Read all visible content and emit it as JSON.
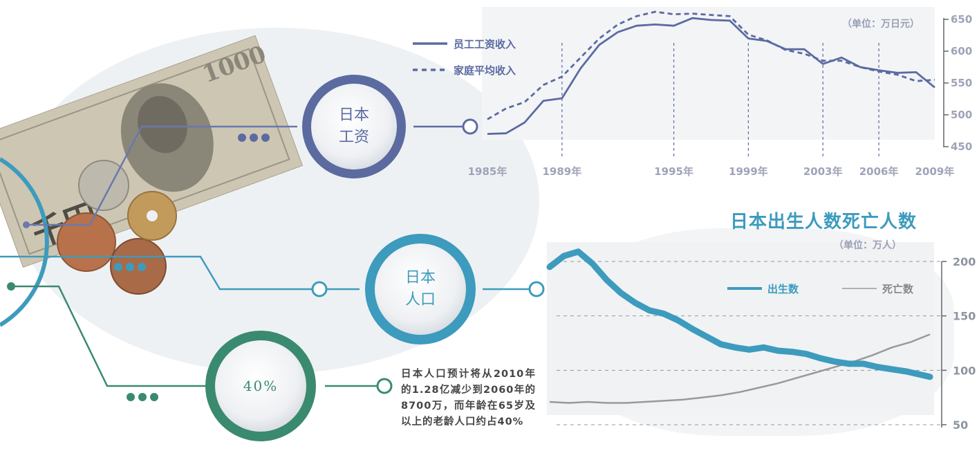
{
  "wage_circle": {
    "line1": "日本",
    "line2": "工资"
  },
  "pop_circle": {
    "line1": "日本",
    "line2": "人口"
  },
  "pct_circle": {
    "label": "40%"
  },
  "note": "日本人口预计将从2010年的1.28亿减少到2060年的8700万，而年龄在65岁及以上的老龄人口约占40%",
  "colors": {
    "wage": "#5b6ba0",
    "pop": "#3d9bbd",
    "pct": "#3a8a6f",
    "death": "#999999"
  },
  "chart_data": [
    {
      "type": "line",
      "unit_label": "（单位：万日元）",
      "x_ticks": [
        "1985年",
        "1989年",
        "1995年",
        "1999年",
        "2003年",
        "2006年",
        "2009年"
      ],
      "x_tick_years": [
        1985,
        1989,
        1995,
        1999,
        2003,
        2006,
        2009
      ],
      "y_ticks": [
        "650",
        "600",
        "550",
        "500",
        "450"
      ],
      "ylim": [
        450,
        650
      ],
      "xlim": [
        1985,
        2009
      ],
      "legend_position": "top-left",
      "series": [
        {
          "name": "员工工资收入",
          "style": "solid",
          "points": [
            [
              1985,
              470
            ],
            [
              1986,
              471
            ],
            [
              1987,
              488
            ],
            [
              1988,
              522
            ],
            [
              1989,
              526
            ],
            [
              1990,
              573
            ],
            [
              1991,
              610
            ],
            [
              1992,
              630
            ],
            [
              1993,
              640
            ],
            [
              1994,
              642
            ],
            [
              1995,
              640
            ],
            [
              1996,
              652
            ],
            [
              1997,
              649
            ],
            [
              1998,
              648
            ],
            [
              1999,
              620
            ],
            [
              2000,
              616
            ],
            [
              2001,
              603
            ],
            [
              2002,
              603
            ],
            [
              2003,
              580
            ],
            [
              2004,
              590
            ],
            [
              2005,
              575
            ],
            [
              2006,
              570
            ],
            [
              2007,
              566
            ],
            [
              2008,
              567
            ],
            [
              2009,
              543
            ]
          ]
        },
        {
          "name": "家庭平均收入",
          "style": "dashed",
          "points": [
            [
              1985,
              493
            ],
            [
              1986,
              510
            ],
            [
              1987,
              520
            ],
            [
              1988,
              547
            ],
            [
              1989,
              560
            ],
            [
              1990,
              590
            ],
            [
              1991,
              620
            ],
            [
              1992,
              642
            ],
            [
              1993,
              655
            ],
            [
              1994,
              662
            ],
            [
              1995,
              658
            ],
            [
              1996,
              659
            ],
            [
              1997,
              657
            ],
            [
              1998,
              655
            ],
            [
              1999,
              626
            ],
            [
              2000,
              617
            ],
            [
              2001,
              602
            ],
            [
              2002,
              596
            ],
            [
              2003,
              585
            ],
            [
              2004,
              585
            ],
            [
              2005,
              575
            ],
            [
              2006,
              568
            ],
            [
              2007,
              563
            ],
            [
              2008,
              553
            ],
            [
              2009,
              555
            ]
          ]
        }
      ]
    },
    {
      "type": "line",
      "title": "日本出生人数死亡人数",
      "unit_label": "（单位：万人）",
      "y_ticks": [
        "200",
        "150",
        "100",
        "50"
      ],
      "ylim": [
        50,
        200
      ],
      "grid": "dashed horizontal",
      "legend_position": "top-right",
      "series": [
        {
          "name": "出生数",
          "points": [
            [
              0,
              195
            ],
            [
              3,
              205
            ],
            [
              6,
              209
            ],
            [
              9,
              198
            ],
            [
              12,
              183
            ],
            [
              15,
              171
            ],
            [
              18,
              162
            ],
            [
              21,
              155
            ],
            [
              24,
              152
            ],
            [
              27,
              146
            ],
            [
              30,
              138
            ],
            [
              33,
              131
            ],
            [
              36,
              124
            ],
            [
              39,
              121
            ],
            [
              42,
              119
            ],
            [
              45,
              121
            ],
            [
              48,
              118
            ],
            [
              51,
              117
            ],
            [
              54,
              115
            ],
            [
              57,
              111
            ],
            [
              60,
              108
            ],
            [
              63,
              106
            ],
            [
              66,
              106
            ],
            [
              69,
              103
            ],
            [
              72,
              101
            ],
            [
              75,
              99
            ],
            [
              78,
              96
            ],
            [
              80,
              94
            ]
          ]
        },
        {
          "name": "死亡数",
          "points": [
            [
              0,
              71
            ],
            [
              4,
              70
            ],
            [
              8,
              71
            ],
            [
              12,
              70
            ],
            [
              16,
              70
            ],
            [
              20,
              71
            ],
            [
              24,
              72
            ],
            [
              28,
              73
            ],
            [
              32,
              75
            ],
            [
              36,
              77
            ],
            [
              40,
              80
            ],
            [
              44,
              84
            ],
            [
              48,
              88
            ],
            [
              52,
              93
            ],
            [
              56,
              98
            ],
            [
              60,
              103
            ],
            [
              64,
              108
            ],
            [
              68,
              114
            ],
            [
              72,
              121
            ],
            [
              76,
              126
            ],
            [
              80,
              133
            ]
          ]
        }
      ]
    }
  ]
}
